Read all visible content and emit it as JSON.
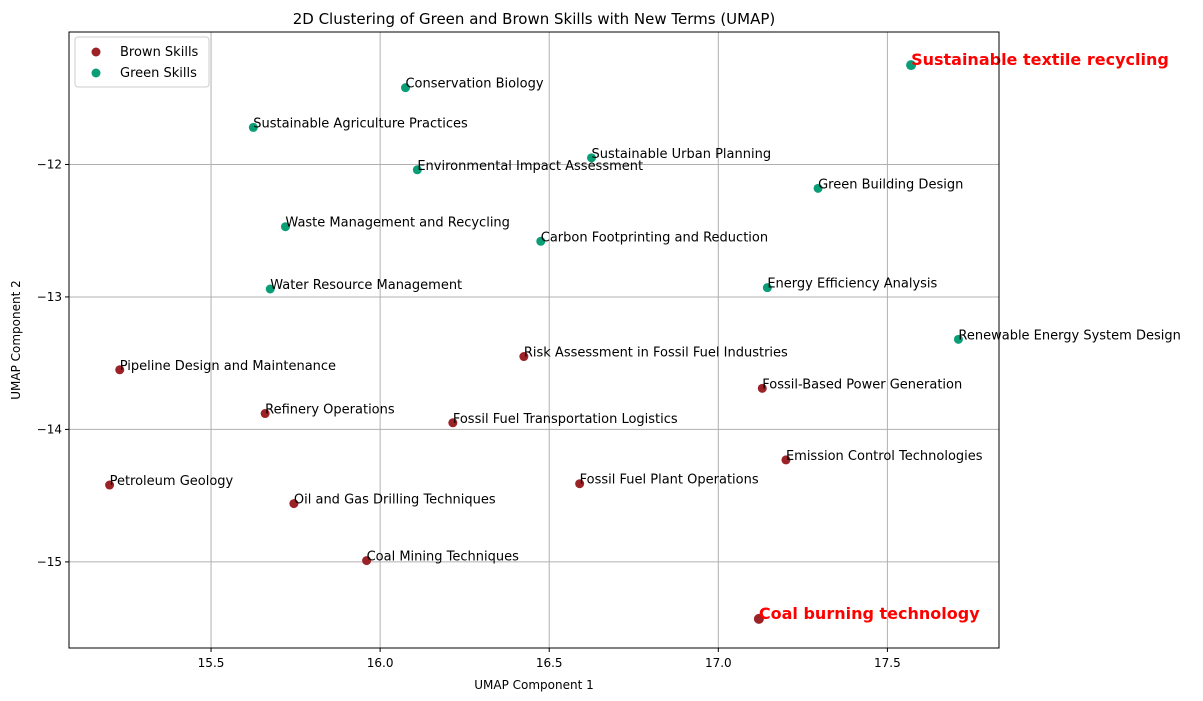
{
  "chart_data": {
    "type": "scatter",
    "title": "2D Clustering of Green and Brown Skills with New Terms (UMAP)",
    "xlabel": "UMAP Component 1",
    "ylabel": "UMAP Component 2",
    "xlim": [
      15.08,
      17.83
    ],
    "ylim": [
      -15.65,
      -11.0
    ],
    "xticks": [
      15.5,
      16.0,
      16.5,
      17.0,
      17.5
    ],
    "xtick_labels": [
      "15.5",
      "16.0",
      "16.5",
      "17.0",
      "17.5"
    ],
    "yticks": [
      -12,
      -13,
      -14,
      -15
    ],
    "ytick_labels": [
      "−12",
      "−13",
      "−14",
      "−15"
    ],
    "grid": true,
    "legend_position": "top-left",
    "series": [
      {
        "name": "Brown Skills",
        "color": "#9b2226",
        "points": [
          {
            "label": "Pipeline Design and Maintenance",
            "x": 15.23,
            "y": -13.55
          },
          {
            "label": "Refinery Operations",
            "x": 15.66,
            "y": -13.88
          },
          {
            "label": "Petroleum Geology",
            "x": 15.2,
            "y": -14.42
          },
          {
            "label": "Oil and Gas Drilling Techniques",
            "x": 15.745,
            "y": -14.56
          },
          {
            "label": "Coal Mining Techniques",
            "x": 15.96,
            "y": -14.99
          },
          {
            "label": "Fossil Fuel Transportation Logistics",
            "x": 16.215,
            "y": -13.95
          },
          {
            "label": "Risk Assessment in Fossil Fuel Industries",
            "x": 16.425,
            "y": -13.45
          },
          {
            "label": "Fossil Fuel Plant Operations",
            "x": 16.59,
            "y": -14.41
          },
          {
            "label": "Fossil-Based Power Generation",
            "x": 17.13,
            "y": -13.69
          },
          {
            "label": "Emission Control Technologies",
            "x": 17.2,
            "y": -14.23
          }
        ]
      },
      {
        "name": "Green Skills",
        "color": "#0a9e77",
        "points": [
          {
            "label": "Conservation Biology",
            "x": 16.075,
            "y": -11.42
          },
          {
            "label": "Sustainable Agriculture Practices",
            "x": 15.625,
            "y": -11.72
          },
          {
            "label": "Environmental Impact Assessment",
            "x": 16.11,
            "y": -12.04
          },
          {
            "label": "Sustainable Urban Planning",
            "x": 16.625,
            "y": -11.95
          },
          {
            "label": "Green Building Design",
            "x": 17.295,
            "y": -12.18
          },
          {
            "label": "Waste Management and Recycling",
            "x": 15.72,
            "y": -12.47
          },
          {
            "label": "Carbon Footprinting and Reduction",
            "x": 16.475,
            "y": -12.58
          },
          {
            "label": "Water Resource Management",
            "x": 15.675,
            "y": -12.94
          },
          {
            "label": "Energy Efficiency Analysis",
            "x": 17.145,
            "y": -12.93
          },
          {
            "label": "Renewable Energy System Design",
            "x": 17.71,
            "y": -13.32
          }
        ]
      }
    ],
    "new_terms": [
      {
        "label": "Sustainable textile recycling",
        "x": 17.57,
        "y": -11.25,
        "color": "#0a9e77",
        "label_color": "#ff0000"
      },
      {
        "label": "Coal burning technology",
        "x": 17.12,
        "y": -15.43,
        "color": "#9b2226",
        "label_color": "#ff0000"
      }
    ]
  }
}
